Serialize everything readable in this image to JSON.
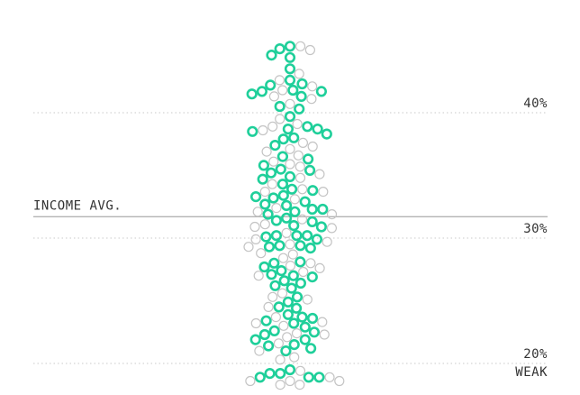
{
  "chart_data": {
    "type": "scatter",
    "title": "",
    "subtitle": "",
    "xlabel": "",
    "ylabel": "",
    "y_unit": "%",
    "ylim": [
      18.5,
      45.5
    ],
    "y_ticks": [
      {
        "value": 40,
        "label": "40%"
      },
      {
        "value": 30,
        "label": "30%"
      },
      {
        "value": 20,
        "label": "20%"
      }
    ],
    "grid": true,
    "reference_line": {
      "label": "INCOME AVG.",
      "value": 30.7
    },
    "edge_label": {
      "label": "WEAK",
      "value": 19.2
    },
    "colors": {
      "highlight": "#1fcf9a",
      "neutral": "#c4c4c4",
      "reference": "#b3b3b3",
      "text": "#333333"
    },
    "points": {
      "highlighted_y": [
        45.3,
        45.1,
        44.6,
        44.4,
        43.5,
        42.6,
        42.3,
        42.2,
        41.8,
        41.7,
        41.7,
        41.5,
        41.3,
        40.3,
        40.5,
        39.7,
        38.9,
        38.7,
        38.7,
        38.5,
        38.3,
        38.0,
        37.9,
        37.4,
        36.5,
        36.3,
        35.8,
        35.4,
        35.5,
        35.2,
        34.9,
        34.7,
        34.3,
        33.8,
        33.9,
        33.4,
        33.3,
        33.2,
        32.9,
        32.7,
        32.6,
        32.3,
        32.3,
        32.1,
        31.9,
        31.6,
        31.4,
        31.3,
        31.0,
        30.9,
        30.2,
        30.2,
        30.1,
        30.2,
        29.9,
        29.4,
        29.4,
        29.3,
        29.2,
        28.1,
        28.0,
        27.7,
        27.4,
        27.1,
        27.0,
        26.9,
        26.6,
        26.4,
        26.2,
        26.0,
        25.3,
        24.9,
        24.5,
        24.4,
        23.9,
        23.7,
        23.6,
        23.4,
        23.2,
        22.9,
        22.6,
        22.5,
        22.3,
        21.9,
        21.9,
        21.5,
        21.4,
        21.2,
        21.0,
        19.5,
        19.2,
        19.2,
        18.9,
        18.9,
        18.9
      ],
      "neutral_y": [
        45.3,
        45.0,
        43.1,
        42.6,
        42.1,
        41.8,
        41.3,
        41.1,
        40.7,
        39.5,
        39.1,
        38.9,
        38.6,
        37.6,
        37.3,
        37.1,
        36.9,
        36.6,
        36.1,
        35.9,
        35.7,
        35.1,
        34.8,
        34.3,
        33.9,
        33.7,
        33.7,
        33.1,
        32.4,
        32.1,
        31.9,
        31.5,
        31.1,
        30.9,
        30.8,
        30.4,
        29.9,
        29.7,
        29.5,
        29.3,
        28.8,
        28.7,
        28.4,
        28.0,
        27.8,
        27.6,
        27.3,
        27.0,
        25.6,
        25.3,
        25.1,
        24.5,
        23.7,
        23.3,
        23.2,
        23.0,
        22.4,
        22.3,
        22.1,
        21.6,
        21.0,
        20.5,
        20.3,
        19.4,
        18.9,
        18.6,
        18.6,
        18.6,
        18.3,
        18.3
      ]
    }
  }
}
